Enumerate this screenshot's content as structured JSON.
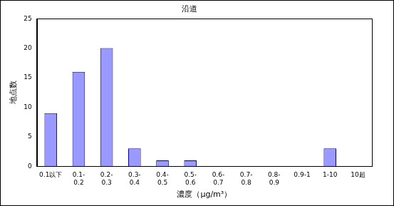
{
  "chart_data": {
    "type": "bar",
    "title": "沿道",
    "categories": [
      "0.1以下",
      "0.1-0.2",
      "0.2-0.3",
      "0.3-0.4",
      "0.4-0.5",
      "0.5-0.6",
      "0.6-0.7",
      "0.7-0.8",
      "0.8-0.9",
      "0.9-1",
      "1-10",
      "10超"
    ],
    "values": [
      9,
      16,
      20,
      3,
      1,
      1,
      0,
      0,
      0,
      0,
      3,
      0
    ],
    "color": "#9999ff",
    "x_label": "濃度（μg/m³）",
    "y_label": "地点数",
    "ylim": [
      0,
      25
    ],
    "yticks": [
      0,
      5,
      10,
      15,
      20,
      25
    ],
    "grid": false
  }
}
